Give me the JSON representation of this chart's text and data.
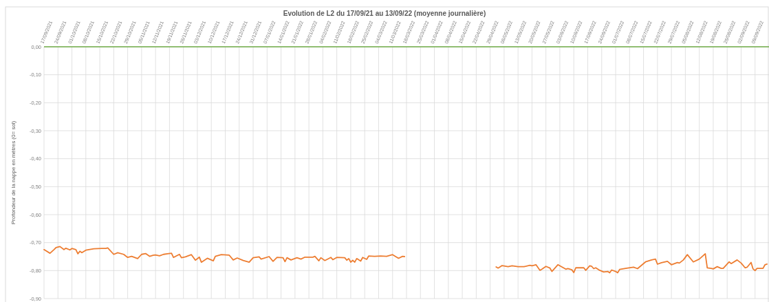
{
  "chart_data": {
    "type": "line",
    "title": "Evolution  de L2 du 17/09/21 au 13/09/22 (moyenne journalière)",
    "ylabel": "Profondeur de la nappe en mètres (0= sol)",
    "x": [
      "2021-09-17",
      "2021-09-20",
      "2021-09-22",
      "2021-09-23",
      "2021-09-25",
      "2021-09-27",
      "2021-09-28",
      "2021-09-30",
      "2021-10-01",
      "2021-10-03",
      "2021-10-04",
      "2021-10-05",
      "2021-10-06",
      "2021-10-08",
      "2021-10-12",
      "2021-10-16",
      "2021-10-18",
      "2021-10-19",
      "2021-10-22",
      "2021-10-24",
      "2021-10-27",
      "2021-10-29",
      "2021-10-31",
      "2021-11-03",
      "2021-11-05",
      "2021-11-07",
      "2021-11-09",
      "2021-11-11",
      "2021-11-12",
      "2021-11-14",
      "2021-11-16",
      "2021-11-18",
      "2021-11-20",
      "2021-11-21",
      "2021-11-24",
      "2021-11-25",
      "2021-11-27",
      "2021-11-30",
      "2021-12-02",
      "2021-12-04",
      "2021-12-05",
      "2021-12-08",
      "2021-12-09",
      "2021-12-11",
      "2021-12-12",
      "2021-12-15",
      "2021-12-19",
      "2021-12-21",
      "2021-12-23",
      "2021-12-26",
      "2021-12-29",
      "2021-12-31",
      "2022-01-03",
      "2022-01-04",
      "2022-01-08",
      "2022-01-10",
      "2022-01-12",
      "2022-01-15",
      "2022-01-16",
      "2022-01-17",
      "2022-01-19",
      "2022-01-22",
      "2022-01-24",
      "2022-01-26",
      "2022-01-30",
      "2022-01-31",
      "2022-02-02",
      "2022-02-03",
      "2022-02-05",
      "2022-02-08",
      "2022-02-09",
      "2022-02-11",
      "2022-02-15",
      "2022-02-16",
      "2022-02-17",
      "2022-02-18",
      "2022-02-19",
      "2022-02-20",
      "2022-02-21",
      "2022-02-23",
      "2022-02-24",
      "2022-02-26",
      "2022-02-27",
      "2022-03-02",
      "2022-03-05",
      "2022-03-08",
      "2022-03-11",
      "2022-03-14",
      "2022-03-16",
      "2022-03-17",
      "2022-04-01",
      "2022-05-02",
      "2022-05-03",
      "2022-05-05",
      "2022-05-08",
      "2022-05-10",
      "2022-05-13",
      "2022-05-16",
      "2022-05-19",
      "2022-05-20",
      "2022-05-22",
      "2022-05-24",
      "2022-05-25",
      "2022-05-27",
      "2022-05-29",
      "2022-05-30",
      "2022-06-02",
      "2022-06-04",
      "2022-06-06",
      "2022-06-07",
      "2022-06-09",
      "2022-06-10",
      "2022-06-11",
      "2022-06-15",
      "2022-06-16",
      "2022-06-18",
      "2022-06-19",
      "2022-06-20",
      "2022-06-21",
      "2022-06-23",
      "2022-06-25",
      "2022-06-27",
      "2022-06-28",
      "2022-06-29",
      "2022-07-01",
      "2022-07-02",
      "2022-07-03",
      "2022-07-06",
      "2022-07-10",
      "2022-07-12",
      "2022-07-16",
      "2022-07-19",
      "2022-07-21",
      "2022-07-22",
      "2022-07-24",
      "2022-07-27",
      "2022-07-29",
      "2022-08-01",
      "2022-08-02",
      "2022-08-04",
      "2022-08-06",
      "2022-08-09",
      "2022-08-12",
      "2022-08-15",
      "2022-08-16",
      "2022-08-18",
      "2022-08-19",
      "2022-08-21",
      "2022-08-23",
      "2022-08-24",
      "2022-08-27",
      "2022-08-28",
      "2022-08-31",
      "2022-09-02",
      "2022-09-04",
      "2022-09-05",
      "2022-09-07",
      "2022-09-08",
      "2022-09-09",
      "2022-09-10",
      "2022-09-13",
      "2022-09-14",
      "2022-09-15"
    ],
    "series": [
      {
        "color": "#ed7d31",
        "values": [
          -0.725,
          -0.738,
          -0.725,
          -0.718,
          -0.714,
          -0.725,
          -0.72,
          -0.726,
          -0.721,
          -0.725,
          -0.74,
          -0.731,
          -0.736,
          -0.727,
          -0.722,
          -0.721,
          -0.721,
          -0.719,
          -0.742,
          -0.736,
          -0.742,
          -0.753,
          -0.749,
          -0.757,
          -0.742,
          -0.739,
          -0.749,
          -0.745,
          -0.744,
          -0.747,
          -0.742,
          -0.74,
          -0.738,
          -0.753,
          -0.742,
          -0.754,
          -0.751,
          -0.743,
          -0.763,
          -0.752,
          -0.77,
          -0.756,
          -0.759,
          -0.765,
          -0.749,
          -0.743,
          -0.745,
          -0.762,
          -0.755,
          -0.764,
          -0.77,
          -0.754,
          -0.751,
          -0.759,
          -0.75,
          -0.767,
          -0.753,
          -0.754,
          -0.768,
          -0.754,
          -0.762,
          -0.754,
          -0.759,
          -0.752,
          -0.752,
          -0.749,
          -0.765,
          -0.754,
          -0.764,
          -0.753,
          -0.761,
          -0.753,
          -0.754,
          -0.763,
          -0.757,
          -0.77,
          -0.763,
          -0.77,
          -0.757,
          -0.766,
          -0.753,
          -0.76,
          -0.748,
          -0.749,
          -0.748,
          -0.749,
          -0.743,
          -0.756,
          -0.749,
          -0.75,
          null,
          -0.787,
          -0.791,
          -0.782,
          -0.786,
          -0.783,
          -0.786,
          -0.786,
          -0.781,
          -0.783,
          -0.779,
          -0.799,
          -0.795,
          -0.785,
          -0.791,
          -0.803,
          -0.779,
          -0.787,
          -0.795,
          -0.793,
          -0.797,
          -0.807,
          -0.79,
          -0.79,
          -0.799,
          -0.783,
          -0.785,
          -0.793,
          -0.79,
          -0.799,
          -0.805,
          -0.803,
          -0.808,
          -0.798,
          -0.803,
          -0.808,
          -0.796,
          -0.792,
          -0.788,
          -0.793,
          -0.769,
          -0.762,
          -0.759,
          -0.777,
          -0.772,
          -0.767,
          -0.779,
          -0.771,
          -0.773,
          -0.762,
          -0.743,
          -0.769,
          -0.759,
          -0.74,
          -0.79,
          -0.792,
          -0.794,
          -0.786,
          -0.792,
          -0.792,
          -0.769,
          -0.775,
          -0.762,
          -0.773,
          -0.79,
          -0.788,
          -0.771,
          -0.794,
          -0.8,
          -0.792,
          -0.792,
          -0.779,
          -0.777
        ]
      }
    ],
    "xlim": [
      "2021-09-17",
      "2022-09-16"
    ],
    "xticks": [
      {
        "value": "2021-09-17",
        "label": "17/09/2021"
      },
      {
        "value": "2021-09-24",
        "label": "24/09/2021"
      },
      {
        "value": "2021-10-01",
        "label": "01/10/2021"
      },
      {
        "value": "2021-10-08",
        "label": "08/10/2021"
      },
      {
        "value": "2021-10-15",
        "label": "15/10/2021"
      },
      {
        "value": "2021-10-22",
        "label": "22/10/2021"
      },
      {
        "value": "2021-10-29",
        "label": "29/10/2021"
      },
      {
        "value": "2021-11-05",
        "label": "05/11/2021"
      },
      {
        "value": "2021-11-12",
        "label": "12/11/2021"
      },
      {
        "value": "2021-11-19",
        "label": "19/11/2021"
      },
      {
        "value": "2021-11-26",
        "label": "26/11/2021"
      },
      {
        "value": "2021-12-03",
        "label": "03/12/2021"
      },
      {
        "value": "2021-12-10",
        "label": "10/12/2021"
      },
      {
        "value": "2021-12-17",
        "label": "17/12/2021"
      },
      {
        "value": "2021-12-24",
        "label": "24/12/2021"
      },
      {
        "value": "2021-12-31",
        "label": "31/12/2021"
      },
      {
        "value": "2022-01-07",
        "label": "07/01/2022"
      },
      {
        "value": "2022-01-14",
        "label": "14/01/2022"
      },
      {
        "value": "2022-01-21",
        "label": "21/01/2022"
      },
      {
        "value": "2022-01-28",
        "label": "28/01/2022"
      },
      {
        "value": "2022-02-04",
        "label": "04/02/2022"
      },
      {
        "value": "2022-02-11",
        "label": "11/02/2022"
      },
      {
        "value": "2022-02-18",
        "label": "18/02/2022"
      },
      {
        "value": "2022-02-25",
        "label": "25/02/2022"
      },
      {
        "value": "2022-03-04",
        "label": "04/03/2022"
      },
      {
        "value": "2022-03-11",
        "label": "11/03/2022"
      },
      {
        "value": "2022-03-18",
        "label": "18/03/2022"
      },
      {
        "value": "2022-03-25",
        "label": "25/03/2022"
      },
      {
        "value": "2022-04-01",
        "label": "01/04/2022"
      },
      {
        "value": "2022-04-08",
        "label": "08/04/2022"
      },
      {
        "value": "2022-04-15",
        "label": "15/04/2022"
      },
      {
        "value": "2022-04-22",
        "label": "22/04/2022"
      },
      {
        "value": "2022-04-29",
        "label": "29/04/2022"
      },
      {
        "value": "2022-05-06",
        "label": "06/05/2022"
      },
      {
        "value": "2022-05-13",
        "label": "13/05/2022"
      },
      {
        "value": "2022-05-20",
        "label": "20/05/2022"
      },
      {
        "value": "2022-05-27",
        "label": "27/05/2022"
      },
      {
        "value": "2022-06-03",
        "label": "03/06/2022"
      },
      {
        "value": "2022-06-10",
        "label": "10/06/2022"
      },
      {
        "value": "2022-06-17",
        "label": "17/06/2022"
      },
      {
        "value": "2022-06-24",
        "label": "24/06/2022"
      },
      {
        "value": "2022-07-01",
        "label": "01/07/2022"
      },
      {
        "value": "2022-07-08",
        "label": "08/07/2022"
      },
      {
        "value": "2022-07-15",
        "label": "15/07/2022"
      },
      {
        "value": "2022-07-22",
        "label": "22/07/2022"
      },
      {
        "value": "2022-07-29",
        "label": "29/07/2022"
      },
      {
        "value": "2022-08-05",
        "label": "05/08/2022"
      },
      {
        "value": "2022-08-12",
        "label": "12/08/2022"
      },
      {
        "value": "2022-08-19",
        "label": "19/08/2022"
      },
      {
        "value": "2022-08-26",
        "label": "26/08/2022"
      },
      {
        "value": "2022-09-02",
        "label": "02/09/2022"
      },
      {
        "value": "2022-09-09",
        "label": "09/09/2022"
      }
    ],
    "ylim": [
      -0.9,
      0
    ],
    "yticks": [
      {
        "value": 0,
        "label": "0,00"
      },
      {
        "value": -0.1,
        "label": "-0,10"
      },
      {
        "value": -0.2,
        "label": "-0,20"
      },
      {
        "value": -0.3,
        "label": "-0,30"
      },
      {
        "value": -0.4,
        "label": "-0,40"
      },
      {
        "value": -0.5,
        "label": "-0,50"
      },
      {
        "value": -0.6,
        "label": "-0,60"
      },
      {
        "value": -0.7,
        "label": "-0,70"
      },
      {
        "value": -0.8,
        "label": "-0,80"
      },
      {
        "value": -0.9,
        "label": "-0,90"
      }
    ],
    "grid": true,
    "marker": "none",
    "line_style": "solid"
  }
}
